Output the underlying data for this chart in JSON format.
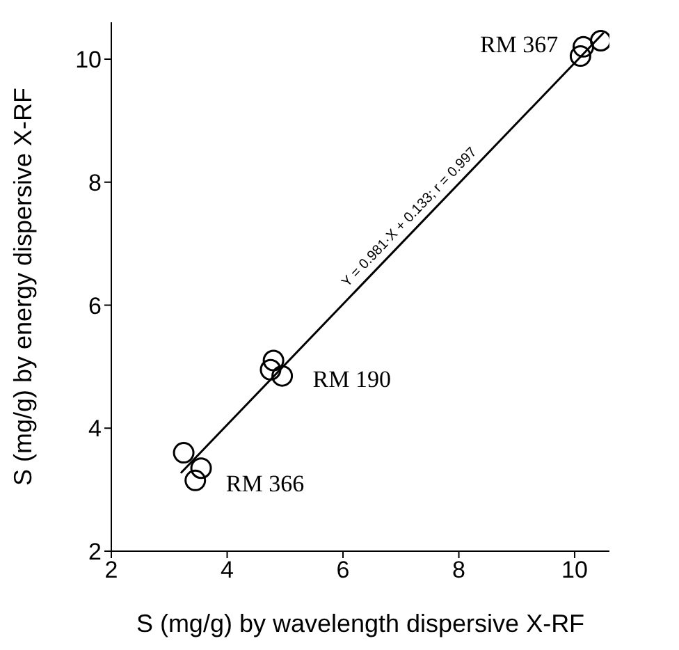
{
  "chart_data": {
    "type": "scatter",
    "xlabel": "S (mg/g) by wavelength dispersive X-RF",
    "ylabel": "S (mg/g) by energy dispersive X-RF",
    "xlim": [
      2,
      10.6
    ],
    "xticks": [
      2,
      4,
      6,
      8,
      10
    ],
    "ylim": [
      2,
      10.6
    ],
    "yticks": [
      2,
      4,
      6,
      8,
      10
    ],
    "grid": false,
    "legend": false,
    "series": [
      {
        "marker": "circle",
        "color": "#000000",
        "x": [
          10.1,
          10.15,
          10.45,
          4.75,
          4.8,
          4.95,
          3.25,
          3.45,
          3.55
        ],
        "values": [
          10.05,
          10.2,
          10.3,
          4.95,
          5.1,
          4.85,
          3.6,
          3.15,
          3.35
        ]
      },
      {
        "type": "line",
        "marker": "none",
        "color": "#000000",
        "x": [
          3.2,
          10.5
        ],
        "values": [
          3.27,
          10.43
        ]
      }
    ],
    "annotations": [
      {
        "text": "RM 367",
        "x": 10.1,
        "y": 10.2
      },
      {
        "text": "RM 190",
        "x": 4.95,
        "y": 4.85
      },
      {
        "text": "RM 366",
        "x": 3.45,
        "y": 3.15
      },
      {
        "text": "Y = 0.981·X + 0.133; r = 0.997",
        "x": 7.3,
        "y": 7.29
      }
    ]
  }
}
